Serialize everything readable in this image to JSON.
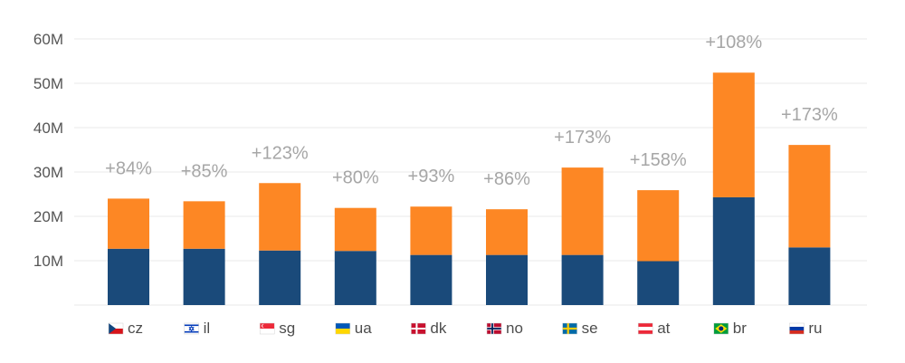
{
  "chart_data": {
    "type": "bar",
    "stacked": true,
    "categories": [
      "cz",
      "il",
      "sg",
      "ua",
      "dk",
      "no",
      "se",
      "at",
      "br",
      "ru"
    ],
    "category_flags": [
      "flag-cz-icon",
      "flag-il-icon",
      "flag-sg-icon",
      "flag-ua-icon",
      "flag-dk-icon",
      "flag-no-icon",
      "flag-se-icon",
      "flag-at-icon",
      "flag-br-icon",
      "flag-ru-icon"
    ],
    "series": [
      {
        "values": [
          12.7,
          12.7,
          12.3,
          12.2,
          11.3,
          11.3,
          11.3,
          9.9,
          24.3,
          13.0
        ],
        "color": "#1a4a7a"
      },
      {
        "values": [
          11.3,
          10.7,
          15.2,
          9.7,
          10.9,
          10.3,
          19.7,
          16.0,
          28.1,
          23.1
        ],
        "color": "#fd8724"
      }
    ],
    "annotations": [
      "+84%",
      "+85%",
      "+123%",
      "+80%",
      "+93%",
      "+86%",
      "+173%",
      "+158%",
      "+108%",
      "+173%"
    ],
    "yticks": [
      "10M",
      "20M",
      "30M",
      "40M",
      "50M",
      "60M"
    ],
    "ylim": [
      0,
      60
    ],
    "grid": true,
    "title": "",
    "xlabel": "",
    "ylabel": ""
  }
}
